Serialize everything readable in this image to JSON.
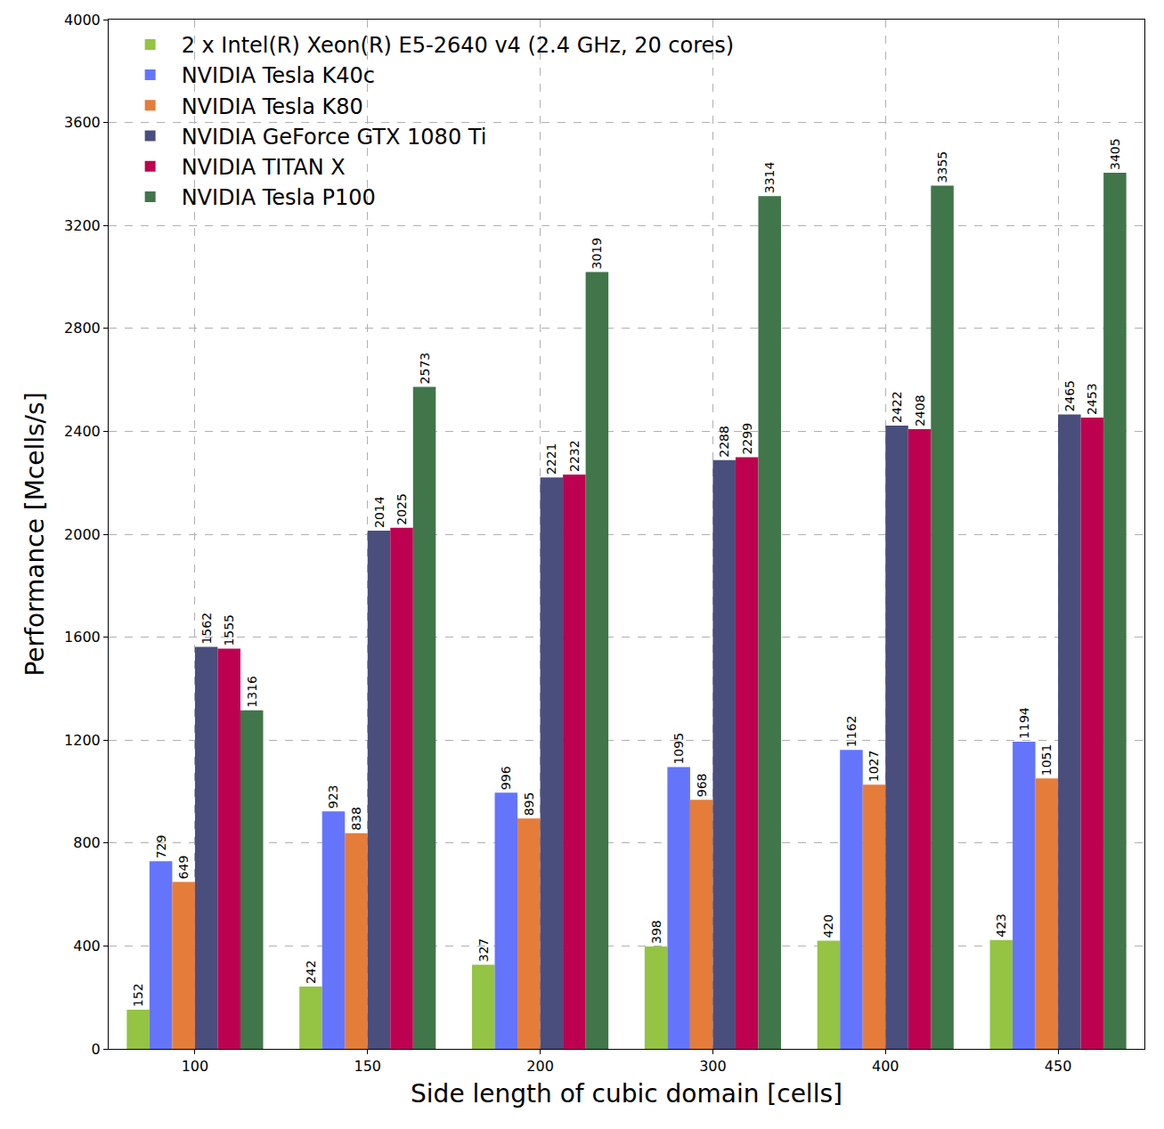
{
  "chart_data": {
    "type": "bar",
    "x_label": "Side length of cubic domain [cells]",
    "y_label": "Performance [Mcells/s]",
    "categories": [
      "100",
      "150",
      "200",
      "300",
      "400",
      "450"
    ],
    "series": [
      {
        "name": "2 x Intel(R) Xeon(R) E5-2640 v4 (2.4 GHz, 20 cores)",
        "color": "#95c343",
        "values": [
          152,
          242,
          327,
          398,
          420,
          423
        ]
      },
      {
        "name": "NVIDIA Tesla K40c",
        "color": "#6475fb",
        "values": [
          729,
          923,
          996,
          1095,
          1162,
          1194
        ]
      },
      {
        "name": "NVIDIA Tesla K80",
        "color": "#e57c3a",
        "values": [
          649,
          838,
          895,
          968,
          1027,
          1051
        ]
      },
      {
        "name": "NVIDIA GeForce GTX 1080 Ti",
        "color": "#4a4e7d",
        "values": [
          1562,
          2014,
          2221,
          2288,
          2422,
          2465
        ]
      },
      {
        "name": "NVIDIA TITAN X",
        "color": "#be0050",
        "values": [
          1555,
          2025,
          2232,
          2299,
          2408,
          2453
        ]
      },
      {
        "name": "NVIDIA Tesla P100",
        "color": "#41754a",
        "values": [
          1316,
          2573,
          3019,
          3314,
          3355,
          3405
        ]
      }
    ],
    "ylim": [
      0,
      4000
    ],
    "yticks": [
      0,
      400,
      800,
      1200,
      1600,
      2000,
      2400,
      2800,
      3200,
      3600,
      4000
    ],
    "grid": true,
    "legend": "upper left",
    "data_labels": true
  }
}
